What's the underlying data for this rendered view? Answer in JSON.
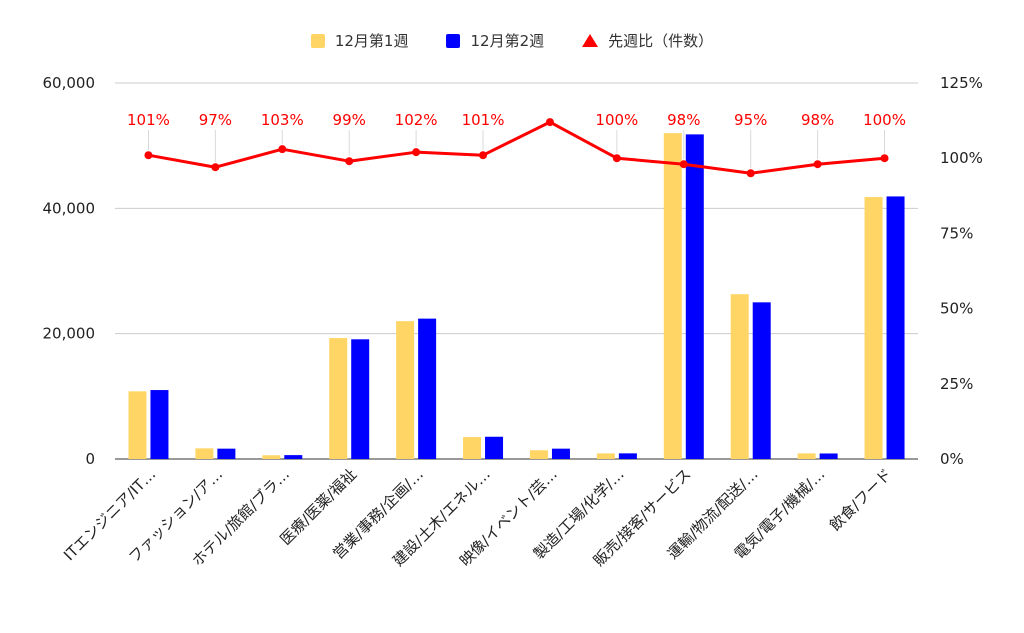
{
  "chart_data": {
    "type": "bar",
    "categories": [
      "ITエンジニア/IT…",
      "ファッション/ア…",
      "ホテル/旅館/ブラ…",
      "医療/医薬/福祉",
      "営業/事務/企画/…",
      "建設/土木/エネル…",
      "映像/イベント/芸…",
      "製造/工場/化学/…",
      "販売/接客/サービス",
      "運輸/物流/配送/…",
      "電気/電子/機械/…",
      "飲食/フード"
    ],
    "series": [
      {
        "name": "12月第1週",
        "type": "bar",
        "axis": "left",
        "color": "#ffd666",
        "values": [
          10800,
          1700,
          600,
          19300,
          22000,
          3500,
          1400,
          900,
          52000,
          26300,
          900,
          41800
        ]
      },
      {
        "name": "12月第2週",
        "type": "bar",
        "axis": "left",
        "color": "#0000ff",
        "values": [
          11000,
          1650,
          620,
          19100,
          22400,
          3550,
          1650,
          900,
          51800,
          25000,
          880,
          41900
        ]
      },
      {
        "name": "先週比（件数）",
        "type": "line",
        "axis": "right",
        "color": "#ff0000",
        "values": [
          101,
          97,
          103,
          99,
          102,
          101,
          112,
          100,
          98,
          95,
          98,
          100
        ]
      }
    ],
    "data_labels": [
      "101%",
      "97%",
      "103%",
      "99%",
      "102%",
      "101%",
      "",
      "100%",
      "98%",
      "95%",
      "98%",
      "100%"
    ],
    "y_left": {
      "ylim": [
        0,
        60000
      ],
      "ticks": [
        "0",
        "20,000",
        "40,000",
        "60,000"
      ]
    },
    "y_right": {
      "ylim": [
        0,
        125
      ],
      "ticks": [
        "0%",
        "25%",
        "50%",
        "75%",
        "100%",
        "125%"
      ]
    },
    "legend_position": "top",
    "grid": true
  }
}
